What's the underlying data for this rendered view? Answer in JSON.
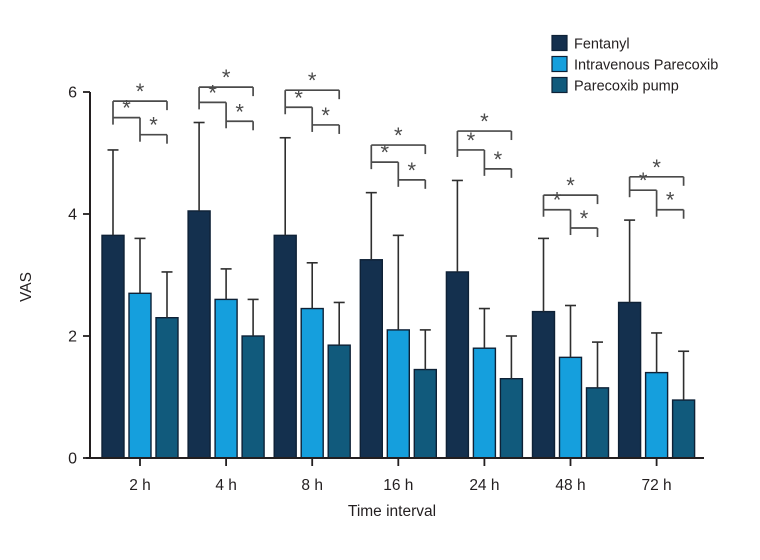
{
  "chart_data": {
    "type": "bar",
    "title": "",
    "xlabel": "Time interval",
    "ylabel": "VAS",
    "ylim": [
      0,
      6
    ],
    "yticks": [
      0,
      2,
      4,
      6
    ],
    "grid": false,
    "legend_position": "top-right",
    "categories": [
      "2 h",
      "4 h",
      "8 h",
      "16 h",
      "24 h",
      "48 h",
      "72 h"
    ],
    "series": [
      {
        "name": "Fentanyl",
        "color": "#14304e",
        "values": [
          3.65,
          4.05,
          3.65,
          3.25,
          3.05,
          2.4,
          2.55
        ],
        "error_upper": [
          1.4,
          1.45,
          1.6,
          1.1,
          1.5,
          1.2,
          1.35
        ]
      },
      {
        "name": "Intravenous Parecoxib",
        "color": "#159fdd",
        "values": [
          2.7,
          2.6,
          2.45,
          2.1,
          1.8,
          1.65,
          1.4
        ],
        "error_upper": [
          0.9,
          0.5,
          0.75,
          1.55,
          0.65,
          0.85,
          0.65
        ]
      },
      {
        "name": "Parecoxib pump",
        "color": "#115a7c",
        "values": [
          2.3,
          2.0,
          1.85,
          1.45,
          1.3,
          1.15,
          0.95
        ],
        "error_upper": [
          0.75,
          0.6,
          0.7,
          0.65,
          0.7,
          0.75,
          0.8
        ]
      }
    ],
    "significance": {
      "symbol": "*",
      "comparisons": [
        "fentanyl_vs_pump",
        "fentanyl_vs_iv",
        "iv_vs_pump"
      ],
      "bracket_levels_vas": [
        {
          "category": "2 h",
          "fentanyl_vs_pump": 5.85,
          "fentanyl_vs_iv": 5.58,
          "iv_vs_pump": 5.3
        },
        {
          "category": "4 h",
          "fentanyl_vs_pump": 6.08,
          "fentanyl_vs_iv": 5.83,
          "iv_vs_pump": 5.52
        },
        {
          "category": "8 h",
          "fentanyl_vs_pump": 6.03,
          "fentanyl_vs_iv": 5.75,
          "iv_vs_pump": 5.46
        },
        {
          "category": "16 h",
          "fentanyl_vs_pump": 5.13,
          "fentanyl_vs_iv": 4.85,
          "iv_vs_pump": 4.56
        },
        {
          "category": "24 h",
          "fentanyl_vs_pump": 5.36,
          "fentanyl_vs_iv": 5.05,
          "iv_vs_pump": 4.74
        },
        {
          "category": "48 h",
          "fentanyl_vs_pump": 4.31,
          "fentanyl_vs_iv": 4.07,
          "iv_vs_pump": 3.77
        },
        {
          "category": "72 h",
          "fentanyl_vs_pump": 4.61,
          "fentanyl_vs_iv": 4.39,
          "iv_vs_pump": 4.07
        }
      ]
    },
    "colors": {
      "axis": "#231f20",
      "tick_text": "#231f20",
      "error_bar": "#2e2e2e",
      "sig_bracket": "#4a4a4a",
      "background": "#ffffff",
      "bar_outline": "#0e2136"
    }
  }
}
